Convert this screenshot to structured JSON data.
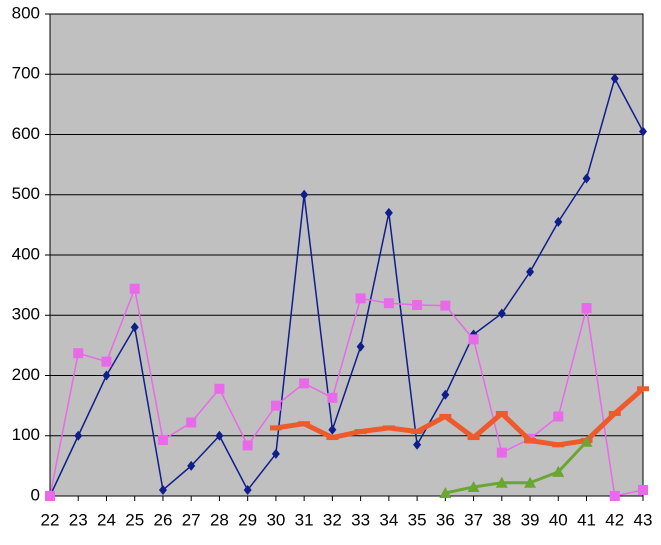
{
  "chart_data": {
    "type": "line",
    "categories": [
      "22",
      "23",
      "24",
      "25",
      "26",
      "27",
      "28",
      "29",
      "30",
      "31",
      "32",
      "33",
      "34",
      "35",
      "36",
      "37",
      "38",
      "39",
      "40",
      "41",
      "42",
      "43"
    ],
    "series": [
      {
        "color": "#101e8c",
        "marker": "diamond",
        "width": 1.5,
        "values": [
          0,
          100,
          200,
          280,
          10,
          50,
          100,
          10,
          70,
          500,
          110,
          248,
          470,
          85,
          168,
          268,
          303,
          372,
          455,
          527,
          693,
          605
        ]
      },
      {
        "color": "#e86ae8",
        "marker": "square",
        "width": 1.5,
        "values": [
          0,
          237,
          223,
          344,
          93,
          122,
          178,
          84,
          150,
          187,
          163,
          328,
          320,
          317,
          316,
          260,
          72,
          95,
          132,
          312,
          0,
          10
        ]
      },
      {
        "color": "#ee5a2c",
        "marker": "dash",
        "width": 5,
        "values": [
          null,
          null,
          null,
          null,
          null,
          null,
          null,
          null,
          113,
          120,
          97,
          107,
          113,
          107,
          132,
          97,
          137,
          92,
          85,
          92,
          137,
          178
        ]
      },
      {
        "color": "#6aa632",
        "marker": "triangle",
        "width": 3,
        "values": [
          null,
          null,
          null,
          null,
          null,
          null,
          null,
          null,
          null,
          null,
          null,
          null,
          null,
          null,
          5,
          15,
          22,
          22,
          40,
          90,
          null,
          null
        ]
      }
    ],
    "ylim": [
      0,
      800
    ],
    "yticks": [
      0,
      100,
      200,
      300,
      400,
      500,
      600,
      700,
      800
    ],
    "grid": true,
    "plot_background": "#c0c0c0"
  }
}
